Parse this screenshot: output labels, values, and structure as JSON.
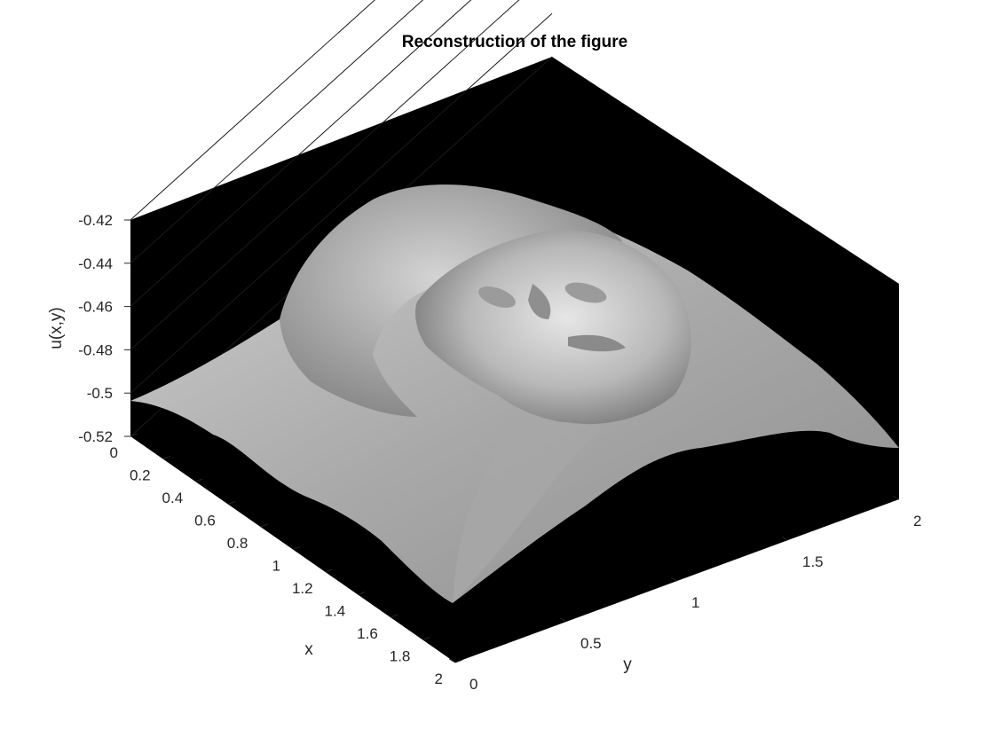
{
  "chart_data": {
    "type": "surface",
    "title": "Reconstruction of the figure",
    "xlabel": "x",
    "ylabel": "y",
    "zlabel": "u(x,y)",
    "xlim": [
      0,
      2
    ],
    "ylim": [
      0,
      2
    ],
    "zlim": [
      -0.52,
      -0.42
    ],
    "x_ticks": [
      "0",
      "0.2",
      "0.4",
      "0.6",
      "0.8",
      "1",
      "1.2",
      "1.4",
      "1.6",
      "1.8",
      "2"
    ],
    "y_ticks": [
      "0",
      "0.5",
      "1",
      "1.5",
      "2"
    ],
    "z_ticks": [
      "-0.42",
      "-0.44",
      "-0.46",
      "-0.48",
      "-0.5",
      "-0.52"
    ],
    "grid": true,
    "colormap": "gray",
    "background_color": "#000000",
    "surface_color": "#bdbdbd"
  }
}
